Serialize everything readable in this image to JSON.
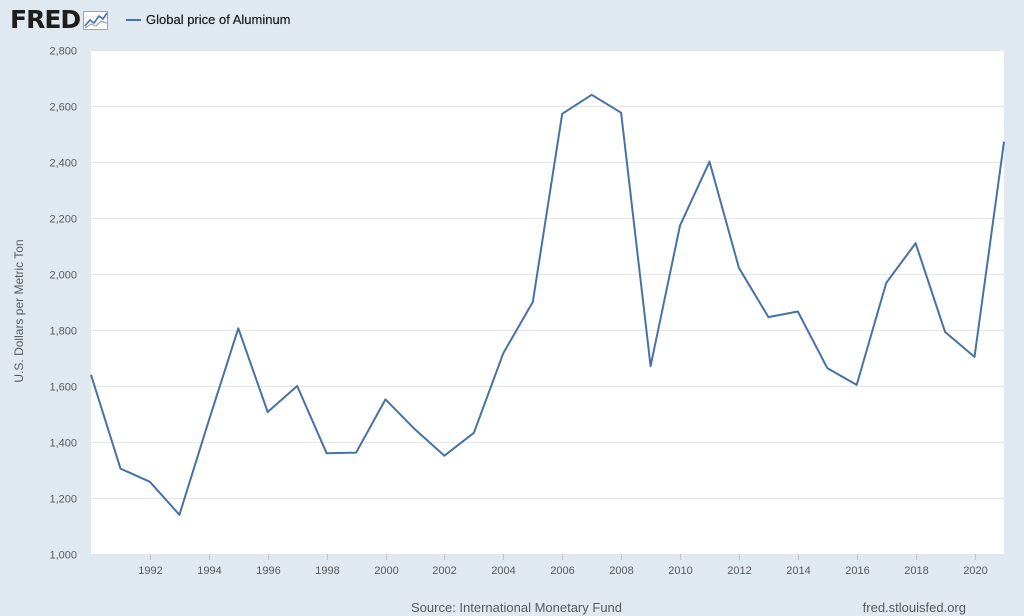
{
  "logo": {
    "text": "FRED",
    "icon": "fred-graph-icon"
  },
  "legend": {
    "label": "Global price of Aluminum",
    "color": "#4572a7"
  },
  "footer": {
    "source": "Source: International Monetary Fund",
    "url": "fred.stlouisfed.org"
  },
  "chart_data": {
    "type": "line",
    "title": "",
    "xlabel": "",
    "ylabel": "U.S. Dollars per Metric Ton",
    "ylim": [
      1000,
      2800
    ],
    "xlim": [
      1990,
      2021
    ],
    "y_ticks": [
      "1,000",
      "1,200",
      "1,400",
      "1,600",
      "1,800",
      "2,000",
      "2,200",
      "2,400",
      "2,600",
      "2,800"
    ],
    "y_tick_values": [
      1000,
      1200,
      1400,
      1600,
      1800,
      2000,
      2200,
      2400,
      2600,
      2800
    ],
    "x_ticks": [
      "1992",
      "1994",
      "1996",
      "1998",
      "2000",
      "2002",
      "2004",
      "2006",
      "2008",
      "2010",
      "2012",
      "2014",
      "2016",
      "2018",
      "2020"
    ],
    "x_tick_values": [
      1992,
      1994,
      1996,
      1998,
      2000,
      2002,
      2004,
      2006,
      2008,
      2010,
      2012,
      2014,
      2016,
      2018,
      2020
    ],
    "grid": true,
    "legend_position": "top-left",
    "series": [
      {
        "name": "Global price of Aluminum",
        "color": "#4572a7",
        "x": [
          1990,
          1991,
          1992,
          1993,
          1994,
          1995,
          1996,
          1997,
          1998,
          1999,
          2000,
          2001,
          2002,
          2003,
          2004,
          2005,
          2006,
          2007,
          2008,
          2009,
          2010,
          2011,
          2012,
          2013,
          2014,
          2015,
          2016,
          2017,
          2018,
          2019,
          2020,
          2021
        ],
        "values": [
          1640,
          1305,
          1258,
          1140,
          1476,
          1806,
          1507,
          1600,
          1360,
          1362,
          1552,
          1445,
          1351,
          1433,
          1717,
          1900,
          2572,
          2640,
          2576,
          1671,
          2173,
          2401,
          2022,
          1846,
          1866,
          1664,
          1604,
          1968,
          2110,
          1793,
          1704,
          2472
        ]
      }
    ]
  }
}
